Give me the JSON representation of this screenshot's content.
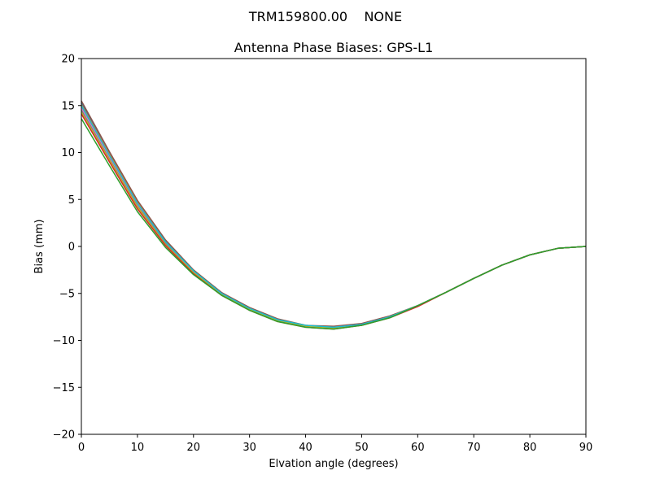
{
  "figure": {
    "suptitle": "TRM159800.00    NONE"
  },
  "chart_data": {
    "type": "line",
    "title": "Antenna Phase Biases: GPS-L1",
    "xlabel": "Elvation angle (degrees)",
    "ylabel": "Bias (mm)",
    "xlim": [
      0,
      90
    ],
    "ylim": [
      -20,
      20
    ],
    "xticks": [
      0,
      10,
      20,
      30,
      40,
      50,
      60,
      70,
      80,
      90
    ],
    "xtick_labels": [
      "0",
      "10",
      "20",
      "30",
      "40",
      "50",
      "60",
      "70",
      "80",
      "90"
    ],
    "yticks": [
      -20,
      -15,
      -10,
      -5,
      0,
      5,
      10,
      15,
      20
    ],
    "ytick_labels": [
      "−20",
      "−15",
      "−10",
      "−5",
      "0",
      "5",
      "10",
      "15",
      "20"
    ],
    "grid": false,
    "legend": "none",
    "x": [
      0,
      5,
      10,
      15,
      20,
      25,
      30,
      35,
      40,
      45,
      50,
      55,
      60,
      65,
      70,
      75,
      80,
      85,
      90
    ],
    "series": [
      {
        "color": "#1f77b4",
        "values": [
          15.3,
          10.0,
          4.8,
          0.6,
          -2.6,
          -4.9,
          -6.6,
          -7.8,
          -8.4,
          -8.6,
          -8.3,
          -7.5,
          -6.3,
          -4.9,
          -3.4,
          -2.0,
          -0.9,
          -0.2,
          0.0
        ]
      },
      {
        "color": "#ff7f0e",
        "values": [
          15.1,
          9.8,
          4.7,
          0.5,
          -2.6,
          -5.0,
          -6.6,
          -7.8,
          -8.4,
          -8.6,
          -8.3,
          -7.5,
          -6.3,
          -4.9,
          -3.4,
          -2.0,
          -0.9,
          -0.2,
          0.0
        ]
      },
      {
        "color": "#9467bd",
        "values": [
          14.9,
          9.6,
          4.5,
          0.4,
          -2.7,
          -5.0,
          -6.6,
          -7.8,
          -8.5,
          -8.6,
          -8.3,
          -7.5,
          -6.3,
          -4.9,
          -3.4,
          -2.0,
          -0.9,
          -0.2,
          0.0
        ]
      },
      {
        "color": "#8c564b",
        "values": [
          15.5,
          10.1,
          4.9,
          0.7,
          -2.5,
          -4.9,
          -6.5,
          -7.7,
          -8.4,
          -8.5,
          -8.2,
          -7.4,
          -6.3,
          -4.9,
          -3.4,
          -2.0,
          -0.9,
          -0.2,
          0.0
        ]
      },
      {
        "color": "#e377c2",
        "values": [
          14.7,
          9.5,
          4.4,
          0.3,
          -2.7,
          -5.0,
          -6.7,
          -7.8,
          -8.5,
          -8.6,
          -8.3,
          -7.5,
          -6.3,
          -4.9,
          -3.4,
          -2.0,
          -0.9,
          -0.2,
          0.0
        ]
      },
      {
        "color": "#7f7f7f",
        "values": [
          14.5,
          9.3,
          4.3,
          0.3,
          -2.8,
          -5.1,
          -6.7,
          -7.9,
          -8.5,
          -8.7,
          -8.3,
          -7.5,
          -6.3,
          -4.9,
          -3.4,
          -2.0,
          -0.9,
          -0.2,
          0.0
        ]
      },
      {
        "color": "#bcbd22",
        "values": [
          14.3,
          9.2,
          4.2,
          0.2,
          -2.8,
          -5.1,
          -6.7,
          -7.9,
          -8.5,
          -8.7,
          -8.4,
          -7.5,
          -6.3,
          -4.9,
          -3.4,
          -2.0,
          -0.9,
          -0.2,
          0.0
        ]
      },
      {
        "color": "#17becf",
        "values": [
          15.0,
          9.7,
          4.6,
          0.5,
          -2.6,
          -5.0,
          -6.6,
          -7.8,
          -8.4,
          -8.6,
          -8.3,
          -7.5,
          -6.3,
          -4.9,
          -3.4,
          -2.0,
          -0.9,
          -0.2,
          0.0
        ]
      },
      {
        "color": "#d62728",
        "values": [
          14.1,
          9.0,
          4.0,
          0.1,
          -2.9,
          -5.2,
          -6.8,
          -8.0,
          -8.6,
          -8.8,
          -8.4,
          -7.6,
          -6.4,
          -4.9,
          -3.4,
          -2.0,
          -0.9,
          -0.2,
          0.0
        ]
      },
      {
        "color": "#2ca02c",
        "values": [
          13.6,
          8.6,
          3.7,
          -0.1,
          -3.0,
          -5.2,
          -6.8,
          -8.0,
          -8.6,
          -8.8,
          -8.4,
          -7.6,
          -6.3,
          -4.9,
          -3.4,
          -2.0,
          -0.9,
          -0.2,
          0.0
        ]
      }
    ]
  }
}
